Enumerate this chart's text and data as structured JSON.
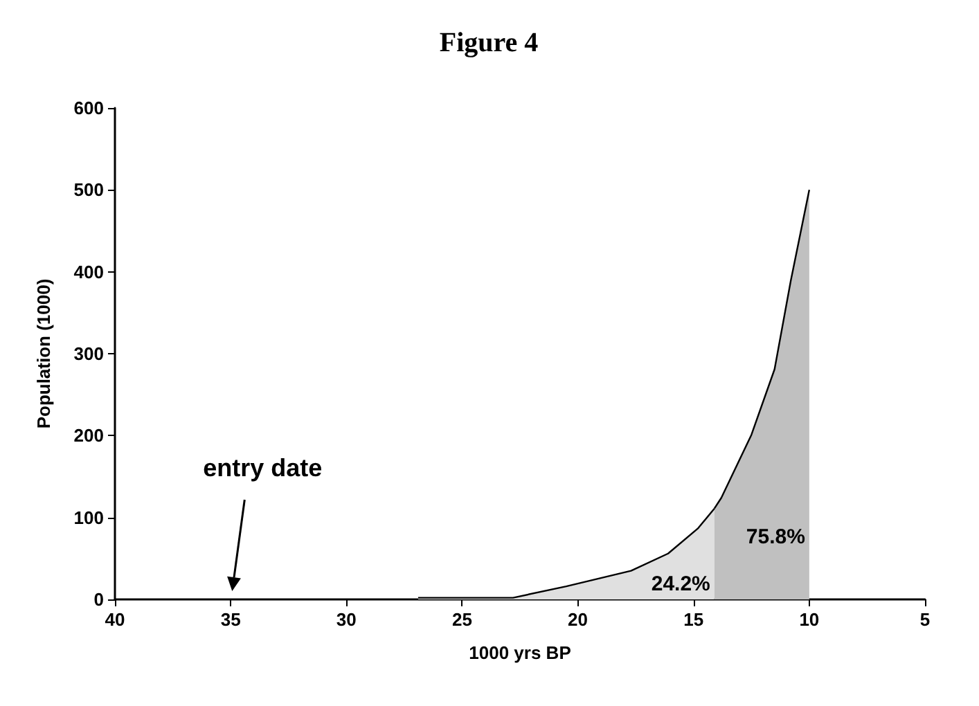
{
  "chart_data": {
    "type": "area",
    "title": "Figure 4",
    "xlabel": "1000 yrs BP",
    "ylabel": "Population (1000)",
    "series": [
      {
        "color": "#e0e0e0",
        "x": [
          26.9,
          22.8,
          20.5,
          17.7,
          16.1,
          14.8,
          14.1
        ],
        "values": [
          2,
          2,
          16,
          35,
          56,
          87,
          111
        ]
      },
      {
        "color": "#c0c0c0",
        "x": [
          14.1,
          13.8,
          12.5,
          11.5,
          10.8,
          10
        ],
        "values": [
          111,
          124,
          201,
          281,
          389,
          500
        ]
      }
    ],
    "xlim": [
      40,
      5
    ],
    "xticks": [
      40,
      35,
      30,
      25,
      20,
      15,
      10,
      5
    ],
    "ylim": [
      0,
      600
    ],
    "yticks": [
      0,
      100,
      200,
      300,
      400,
      500,
      600
    ],
    "grid": false,
    "marker": "none",
    "annotations": [
      "entry date",
      "24.2%",
      "75.8%"
    ]
  }
}
